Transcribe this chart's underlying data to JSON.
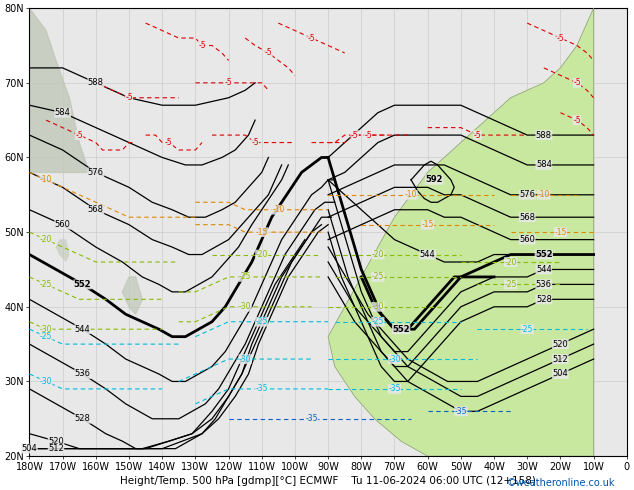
{
  "bg_color": "#e8e8e8",
  "land_color_right": "#c8e8a0",
  "land_color_left": "#c0c8b8",
  "grid_color": "#cccccc",
  "contour_color_black": "#000000",
  "contour_color_red": "#dd0000",
  "contour_color_orange": "#dd8800",
  "contour_color_lime": "#88bb00",
  "contour_color_cyan": "#00bbdd",
  "contour_color_blue": "#0066cc",
  "bottom_label": "Height/Temp. 500 hPa [gdmp][°C] ECMWF",
  "bottom_date": "Tu 11-06-2024 06:00 UTC (12+158)",
  "credit": "©weatheronline.co.uk",
  "xlim": [
    -180,
    0
  ],
  "ylim": [
    20,
    80
  ],
  "xticks": [
    -180,
    -170,
    -160,
    -150,
    -140,
    -130,
    -120,
    -110,
    -100,
    -90,
    -80,
    -70,
    -60,
    -50,
    -40,
    -30,
    -20,
    -10,
    0
  ],
  "yticks": [
    20,
    30,
    40,
    50,
    60,
    70,
    80
  ],
  "tick_fontsize": 7,
  "label_fontsize": 7.5,
  "credit_fontsize": 7
}
